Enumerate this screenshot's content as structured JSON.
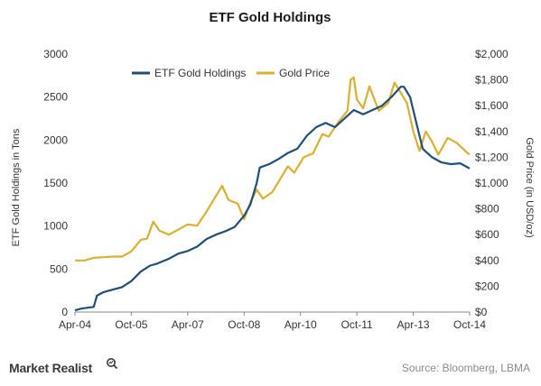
{
  "chart_data": {
    "type": "line",
    "title": "ETF Gold Holdings",
    "ylabel": "ETF Gold Holdings in Tons",
    "y2label": "Gold Price (in USD/oz)",
    "xlabel": "",
    "x_ticks": [
      "Apr-04",
      "Oct-05",
      "Apr-07",
      "Oct-08",
      "Apr-10",
      "Oct-11",
      "Apr-13",
      "Oct-14"
    ],
    "y_ticks": [
      "0",
      "500",
      "1000",
      "1500",
      "2000",
      "2500",
      "3000"
    ],
    "y2_ticks": [
      "$0",
      "$200",
      "$400",
      "$600",
      "$800",
      "$1,000",
      "$1,200",
      "$1,400",
      "$1,600",
      "$1,800",
      "$2,000"
    ],
    "ylim": [
      0,
      3000
    ],
    "y2lim": [
      0,
      2000
    ],
    "grid": false,
    "legend_position": "top-left",
    "series": [
      {
        "name": "ETF Gold Holdings",
        "axis": "left",
        "color": "#1f4e79",
        "x": [
          "2004-04",
          "2004-06",
          "2004-08",
          "2004-10",
          "2004-11",
          "2005-01",
          "2005-04",
          "2005-07",
          "2005-10",
          "2006-01",
          "2006-04",
          "2006-06",
          "2006-10",
          "2007-01",
          "2007-04",
          "2007-07",
          "2007-10",
          "2008-01",
          "2008-04",
          "2008-07",
          "2008-10",
          "2008-12",
          "2009-02",
          "2009-03",
          "2009-06",
          "2009-09",
          "2009-12",
          "2010-03",
          "2010-06",
          "2010-09",
          "2010-12",
          "2011-03",
          "2011-06",
          "2011-09",
          "2011-12",
          "2012-03",
          "2012-06",
          "2012-09",
          "2012-12",
          "2013-01",
          "2013-03",
          "2013-05",
          "2013-07",
          "2013-10",
          "2014-01",
          "2014-04",
          "2014-07",
          "2014-10"
        ],
        "values": [
          20,
          40,
          50,
          60,
          190,
          230,
          260,
          290,
          360,
          470,
          540,
          560,
          620,
          680,
          710,
          760,
          850,
          900,
          940,
          990,
          1120,
          1250,
          1500,
          1680,
          1720,
          1780,
          1850,
          1900,
          2050,
          2150,
          2200,
          2150,
          2250,
          2350,
          2300,
          2350,
          2400,
          2500,
          2620,
          2620,
          2500,
          2200,
          1900,
          1800,
          1740,
          1720,
          1730,
          1670
        ]
      },
      {
        "name": "Gold Price",
        "axis": "right",
        "color": "#d9b02f",
        "x": [
          "2004-04",
          "2004-07",
          "2004-10",
          "2005-01",
          "2005-04",
          "2005-07",
          "2005-10",
          "2006-01",
          "2006-03",
          "2006-05",
          "2006-07",
          "2006-10",
          "2007-01",
          "2007-04",
          "2007-07",
          "2007-10",
          "2008-01",
          "2008-03",
          "2008-05",
          "2008-08",
          "2008-10",
          "2008-12",
          "2009-02",
          "2009-04",
          "2009-07",
          "2009-10",
          "2009-12",
          "2010-02",
          "2010-05",
          "2010-08",
          "2010-11",
          "2011-01",
          "2011-04",
          "2011-07",
          "2011-08",
          "2011-09",
          "2011-10",
          "2011-12",
          "2012-02",
          "2012-05",
          "2012-08",
          "2012-10",
          "2012-12",
          "2013-02",
          "2013-04",
          "2013-06",
          "2013-08",
          "2013-10",
          "2013-12",
          "2014-03",
          "2014-06",
          "2014-09",
          "2014-10"
        ],
        "values": [
          400,
          400,
          420,
          425,
          430,
          430,
          470,
          560,
          570,
          700,
          630,
          600,
          640,
          680,
          670,
          780,
          900,
          980,
          870,
          840,
          720,
          850,
          950,
          880,
          930,
          1050,
          1130,
          1080,
          1200,
          1230,
          1380,
          1360,
          1470,
          1560,
          1800,
          1820,
          1650,
          1580,
          1750,
          1560,
          1620,
          1780,
          1700,
          1620,
          1400,
          1250,
          1400,
          1320,
          1220,
          1350,
          1310,
          1240,
          1220
        ]
      }
    ]
  },
  "footer": {
    "brand": "Market Realist",
    "source": "Source: Bloomberg, LBMA"
  }
}
